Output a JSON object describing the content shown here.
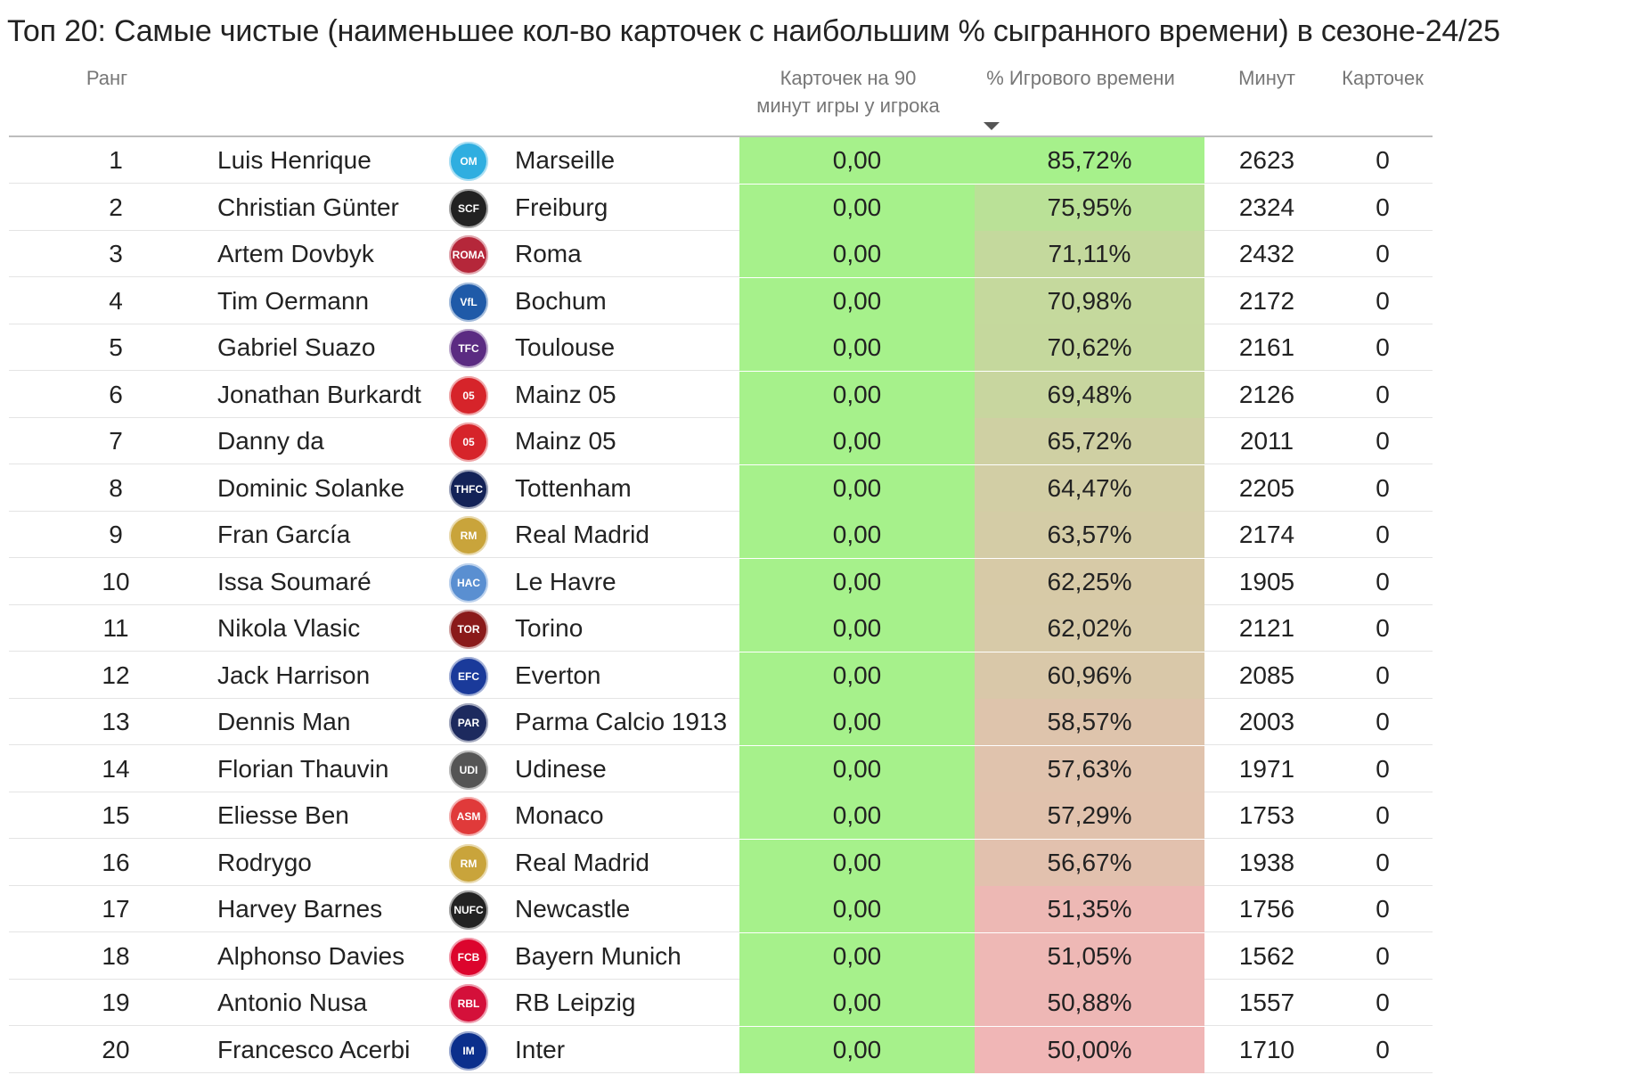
{
  "title": "Топ 20: Самые чистые (наименьшее кол-во карточек с наибольшим % сыгранного времени) в сезоне-24/25",
  "headers": {
    "rank": "Ранг",
    "cards_per_90_line1": "Карточек на 90",
    "cards_per_90_line2": "минут игры у игрока",
    "pct_time": "% Игрового времени",
    "minutes": "Минут",
    "cards": "Карточек"
  },
  "sort_icon": "sort-desc-arrow-icon",
  "colors": {
    "cards90_fill": "#a6f18b",
    "pct_high": "#a6f18b",
    "pct_low": "#f0b6b6"
  },
  "rows": [
    {
      "rank": "1",
      "player": "Luis Henrique",
      "team": "Marseille",
      "logo": "marseille-logo-icon",
      "logo_color": "#2faee0",
      "logo_text": "OM",
      "cards90": "0,00",
      "pct": "85,72%",
      "pct_value": 85.72,
      "minutes": "2623",
      "cards": "0"
    },
    {
      "rank": "2",
      "player": "Christian Günter",
      "team": "Freiburg",
      "logo": "freiburg-logo-icon",
      "logo_color": "#222222",
      "logo_text": "SCF",
      "cards90": "0,00",
      "pct": "75,95%",
      "pct_value": 75.95,
      "minutes": "2324",
      "cards": "0"
    },
    {
      "rank": "3",
      "player": "Artem Dovbyk",
      "team": "Roma",
      "logo": "roma-logo-icon",
      "logo_color": "#b5273a",
      "logo_text": "ROMA",
      "cards90": "0,00",
      "pct": "71,11%",
      "pct_value": 71.11,
      "minutes": "2432",
      "cards": "0"
    },
    {
      "rank": "4",
      "player": "Tim Oermann",
      "team": "Bochum",
      "logo": "bochum-logo-icon",
      "logo_color": "#1f5aa8",
      "logo_text": "VfL",
      "cards90": "0,00",
      "pct": "70,98%",
      "pct_value": 70.98,
      "minutes": "2172",
      "cards": "0"
    },
    {
      "rank": "5",
      "player": "Gabriel Suazo",
      "team": "Toulouse",
      "logo": "toulouse-logo-icon",
      "logo_color": "#5b2b82",
      "logo_text": "TFC",
      "cards90": "0,00",
      "pct": "70,62%",
      "pct_value": 70.62,
      "minutes": "2161",
      "cards": "0"
    },
    {
      "rank": "6",
      "player": "Jonathan Burkardt",
      "team": "Mainz 05",
      "logo": "mainz-logo-icon",
      "logo_color": "#d6242a",
      "logo_text": "05",
      "cards90": "0,00",
      "pct": "69,48%",
      "pct_value": 69.48,
      "minutes": "2126",
      "cards": "0"
    },
    {
      "rank": "7",
      "player": "Danny da",
      "team": "Mainz 05",
      "logo": "mainz-logo-icon",
      "logo_color": "#d6242a",
      "logo_text": "05",
      "cards90": "0,00",
      "pct": "65,72%",
      "pct_value": 65.72,
      "minutes": "2011",
      "cards": "0"
    },
    {
      "rank": "8",
      "player": "Dominic Solanke",
      "team": "Tottenham",
      "logo": "tottenham-logo-icon",
      "logo_color": "#132257",
      "logo_text": "THFC",
      "cards90": "0,00",
      "pct": "64,47%",
      "pct_value": 64.47,
      "minutes": "2205",
      "cards": "0"
    },
    {
      "rank": "9",
      "player": "Fran García",
      "team": "Real Madrid",
      "logo": "real-madrid-logo-icon",
      "logo_color": "#c9a43b",
      "logo_text": "RM",
      "cards90": "0,00",
      "pct": "63,57%",
      "pct_value": 63.57,
      "minutes": "2174",
      "cards": "0"
    },
    {
      "rank": "10",
      "player": "Issa Soumaré",
      "team": "Le Havre",
      "logo": "le-havre-logo-icon",
      "logo_color": "#5a8fd1",
      "logo_text": "HAC",
      "cards90": "0,00",
      "pct": "62,25%",
      "pct_value": 62.25,
      "minutes": "1905",
      "cards": "0"
    },
    {
      "rank": "11",
      "player": "Nikola Vlasic",
      "team": "Torino",
      "logo": "torino-logo-icon",
      "logo_color": "#8a1a1a",
      "logo_text": "TOR",
      "cards90": "0,00",
      "pct": "62,02%",
      "pct_value": 62.02,
      "minutes": "2121",
      "cards": "0"
    },
    {
      "rank": "12",
      "player": "Jack Harrison",
      "team": "Everton",
      "logo": "everton-logo-icon",
      "logo_color": "#1a3a9a",
      "logo_text": "EFC",
      "cards90": "0,00",
      "pct": "60,96%",
      "pct_value": 60.96,
      "minutes": "2085",
      "cards": "0"
    },
    {
      "rank": "13",
      "player": "Dennis Man",
      "team": "Parma Calcio 1913",
      "logo": "parma-logo-icon",
      "logo_color": "#1d2a5e",
      "logo_text": "PAR",
      "cards90": "0,00",
      "pct": "58,57%",
      "pct_value": 58.57,
      "minutes": "2003",
      "cards": "0"
    },
    {
      "rank": "14",
      "player": "Florian Thauvin",
      "team": "Udinese",
      "logo": "udinese-logo-icon",
      "logo_color": "#555555",
      "logo_text": "UDI",
      "cards90": "0,00",
      "pct": "57,63%",
      "pct_value": 57.63,
      "minutes": "1971",
      "cards": "0"
    },
    {
      "rank": "15",
      "player": "Eliesse Ben",
      "team": "Monaco",
      "logo": "monaco-logo-icon",
      "logo_color": "#e03a3a",
      "logo_text": "ASM",
      "cards90": "0,00",
      "pct": "57,29%",
      "pct_value": 57.29,
      "minutes": "1753",
      "cards": "0"
    },
    {
      "rank": "16",
      "player": "Rodrygo",
      "team": "Real Madrid",
      "logo": "real-madrid-logo-icon",
      "logo_color": "#c9a43b",
      "logo_text": "RM",
      "cards90": "0,00",
      "pct": "56,67%",
      "pct_value": 56.67,
      "minutes": "1938",
      "cards": "0"
    },
    {
      "rank": "17",
      "player": "Harvey Barnes",
      "team": "Newcastle",
      "logo": "newcastle-logo-icon",
      "logo_color": "#222222",
      "logo_text": "NUFC",
      "cards90": "0,00",
      "pct": "51,35%",
      "pct_value": 51.35,
      "minutes": "1756",
      "cards": "0"
    },
    {
      "rank": "18",
      "player": "Alphonso Davies",
      "team": "Bayern Munich",
      "logo": "bayern-logo-icon",
      "logo_color": "#dc052d",
      "logo_text": "FCB",
      "cards90": "0,00",
      "pct": "51,05%",
      "pct_value": 51.05,
      "minutes": "1562",
      "cards": "0"
    },
    {
      "rank": "19",
      "player": "Antonio Nusa",
      "team": "RB Leipzig",
      "logo": "rb-leipzig-logo-icon",
      "logo_color": "#d4103a",
      "logo_text": "RBL",
      "cards90": "0,00",
      "pct": "50,88%",
      "pct_value": 50.88,
      "minutes": "1557",
      "cards": "0"
    },
    {
      "rank": "20",
      "player": "Francesco Acerbi",
      "team": "Inter",
      "logo": "inter-logo-icon",
      "logo_color": "#0b2f8c",
      "logo_text": "IM",
      "cards90": "0,00",
      "pct": "50,00%",
      "pct_value": 50.0,
      "minutes": "1710",
      "cards": "0"
    }
  ]
}
